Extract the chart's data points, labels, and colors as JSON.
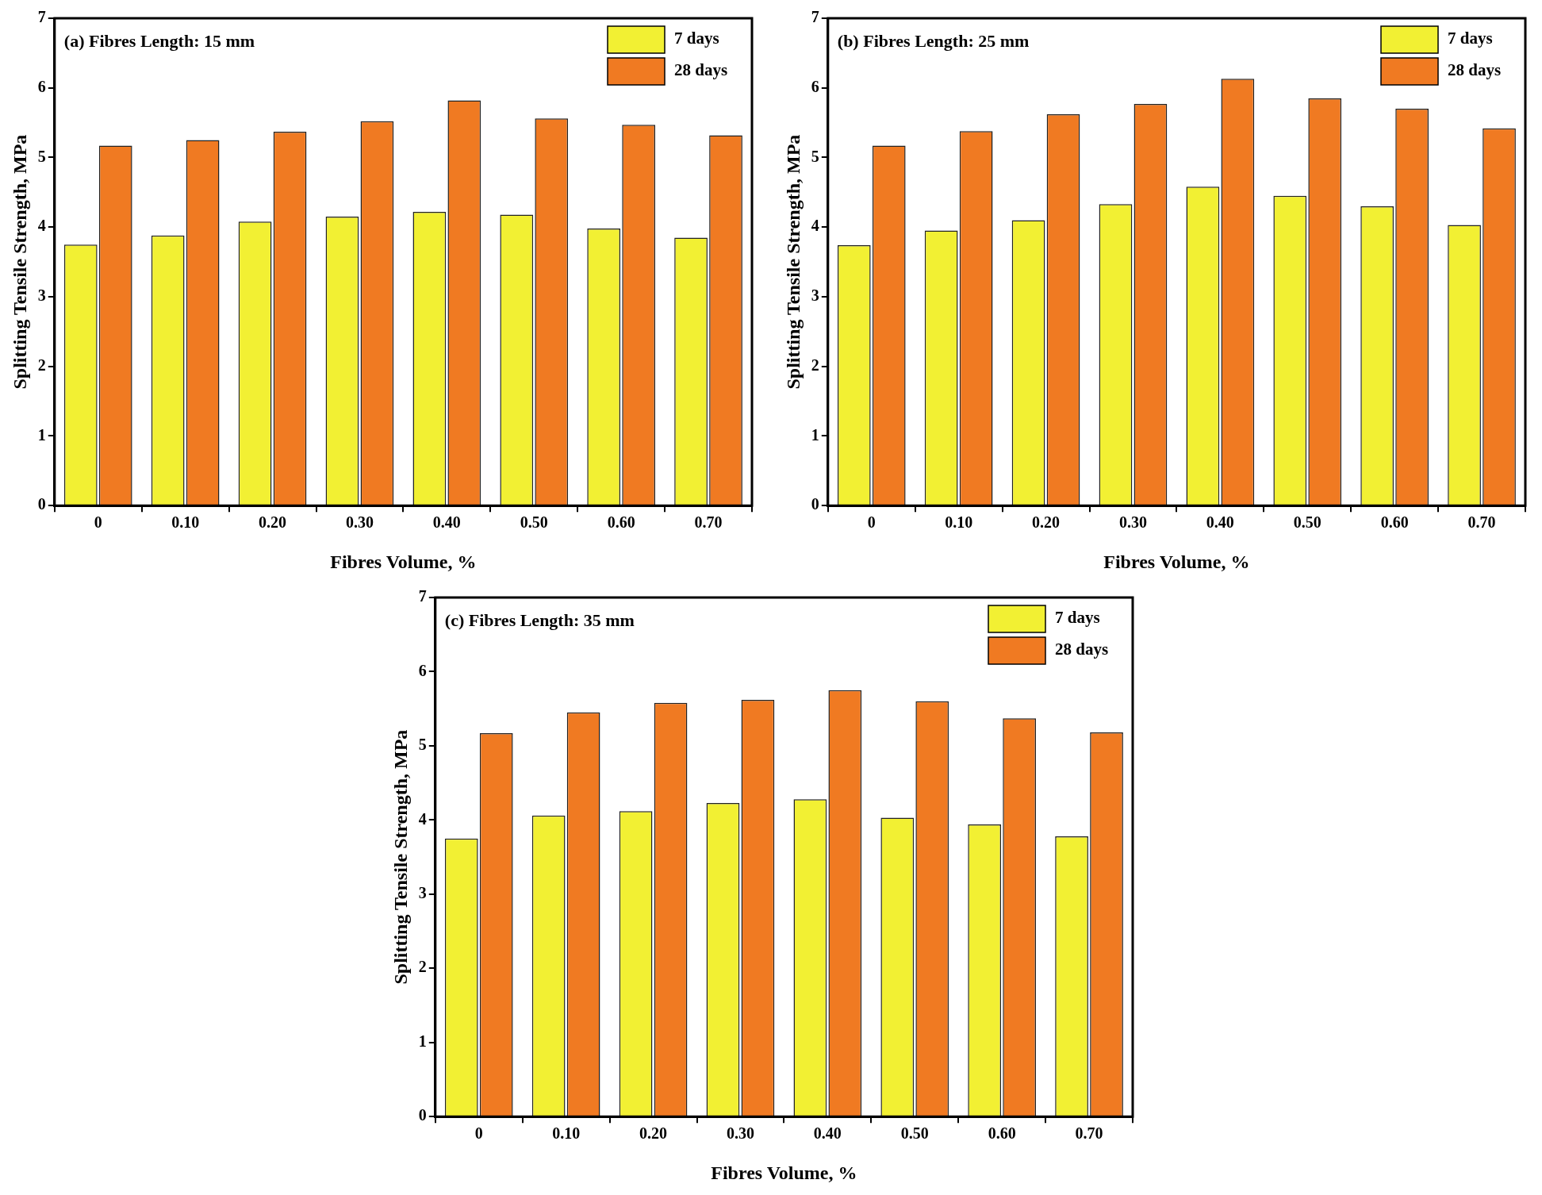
{
  "chart_data": [
    {
      "type": "bar",
      "title": "(a) Fibres Length: 15 mm",
      "xlabel": "Fibres Volume, %",
      "ylabel": "Splitting Tensile Strength, MPa",
      "categories": [
        "0",
        "0.10",
        "0.20",
        "0.30",
        "0.40",
        "0.50",
        "0.60",
        "0.70"
      ],
      "series": [
        {
          "name": "7 days",
          "color": "#f2f033",
          "values": [
            3.75,
            3.88,
            4.08,
            4.15,
            4.22,
            4.18,
            3.98,
            3.85
          ]
        },
        {
          "name": "28 days",
          "color": "#f07a22",
          "values": [
            5.17,
            5.25,
            5.37,
            5.52,
            5.82,
            5.56,
            5.47,
            5.32
          ]
        }
      ],
      "ylim": [
        0,
        7
      ],
      "yticks": [
        0,
        1,
        2,
        3,
        4,
        5,
        6,
        7
      ],
      "legend": "top right",
      "grid": false
    },
    {
      "type": "bar",
      "title": "(b) Fibres Length: 25 mm",
      "xlabel": "Fibres Volume, %",
      "ylabel": "Splitting Tensile Strength, MPa",
      "categories": [
        "0",
        "0.10",
        "0.20",
        "0.30",
        "0.40",
        "0.50",
        "0.60",
        "0.70"
      ],
      "series": [
        {
          "name": "7 days",
          "color": "#f2f033",
          "values": [
            3.74,
            3.95,
            4.1,
            4.33,
            4.58,
            4.45,
            4.3,
            4.03
          ]
        },
        {
          "name": "28 days",
          "color": "#f07a22",
          "values": [
            5.17,
            5.38,
            5.62,
            5.77,
            6.13,
            5.85,
            5.7,
            5.42
          ]
        }
      ],
      "ylim": [
        0,
        7
      ],
      "yticks": [
        0,
        1,
        2,
        3,
        4,
        5,
        6,
        7
      ],
      "legend": "top right",
      "grid": false
    },
    {
      "type": "bar",
      "title": "(c) Fibres Length: 35 mm",
      "xlabel": "Fibres Volume, %",
      "ylabel": "Splitting Tensile Strength, MPa",
      "categories": [
        "0",
        "0.10",
        "0.20",
        "0.30",
        "0.40",
        "0.50",
        "0.60",
        "0.70"
      ],
      "series": [
        {
          "name": "7 days",
          "color": "#f2f033",
          "values": [
            3.75,
            4.06,
            4.12,
            4.23,
            4.28,
            4.03,
            3.94,
            3.78
          ]
        },
        {
          "name": "28 days",
          "color": "#f07a22",
          "values": [
            5.17,
            5.45,
            5.58,
            5.62,
            5.75,
            5.6,
            5.37,
            5.18
          ]
        }
      ],
      "ylim": [
        0,
        7
      ],
      "yticks": [
        0,
        1,
        2,
        3,
        4,
        5,
        6,
        7
      ],
      "legend": "top right",
      "grid": false
    }
  ]
}
